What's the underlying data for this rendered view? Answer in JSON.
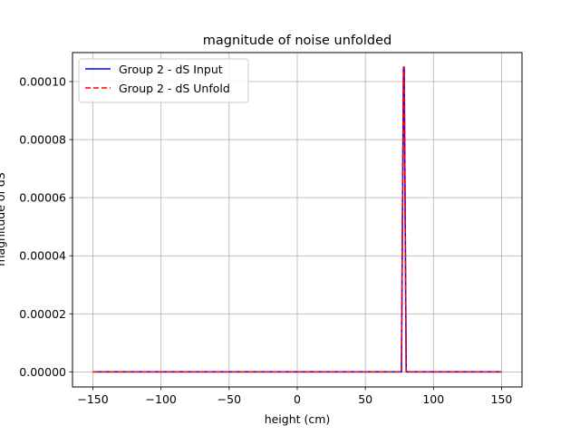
{
  "chart_data": {
    "type": "line",
    "title": "magnitude of noise unfolded",
    "xlabel": "height (cm)",
    "ylabel": "magnitude of dS",
    "xlim": [
      -165,
      165
    ],
    "ylim": [
      -5.2e-06,
      0.00011
    ],
    "xticks": [
      -150,
      -100,
      -50,
      0,
      50,
      100,
      150
    ],
    "xtick_labels": [
      "−150",
      "−100",
      "−50",
      "0",
      "50",
      "100",
      "150"
    ],
    "yticks": [
      0,
      2e-05,
      4e-05,
      6e-05,
      8e-05,
      0.0001
    ],
    "ytick_labels": [
      "0.00000",
      "0.00002",
      "0.00004",
      "0.00006",
      "0.00008",
      "0.00010"
    ],
    "grid": true,
    "legend_position": "upper-left",
    "series": [
      {
        "name": "Group 2 - dS Input",
        "color": "#0000ff",
        "style": "solid",
        "x": [
          -150,
          76.5,
          78,
          78.5,
          80,
          150
        ],
        "y": [
          0,
          0,
          0.000105,
          0.000105,
          0,
          0
        ]
      },
      {
        "name": "Group 2 - dS Unfold",
        "color": "#ff0000",
        "style": "dashed",
        "x": [
          -150,
          76.5,
          78,
          78.5,
          80,
          150
        ],
        "y": [
          0,
          0,
          0.000105,
          0.000105,
          0,
          0
        ]
      }
    ]
  }
}
